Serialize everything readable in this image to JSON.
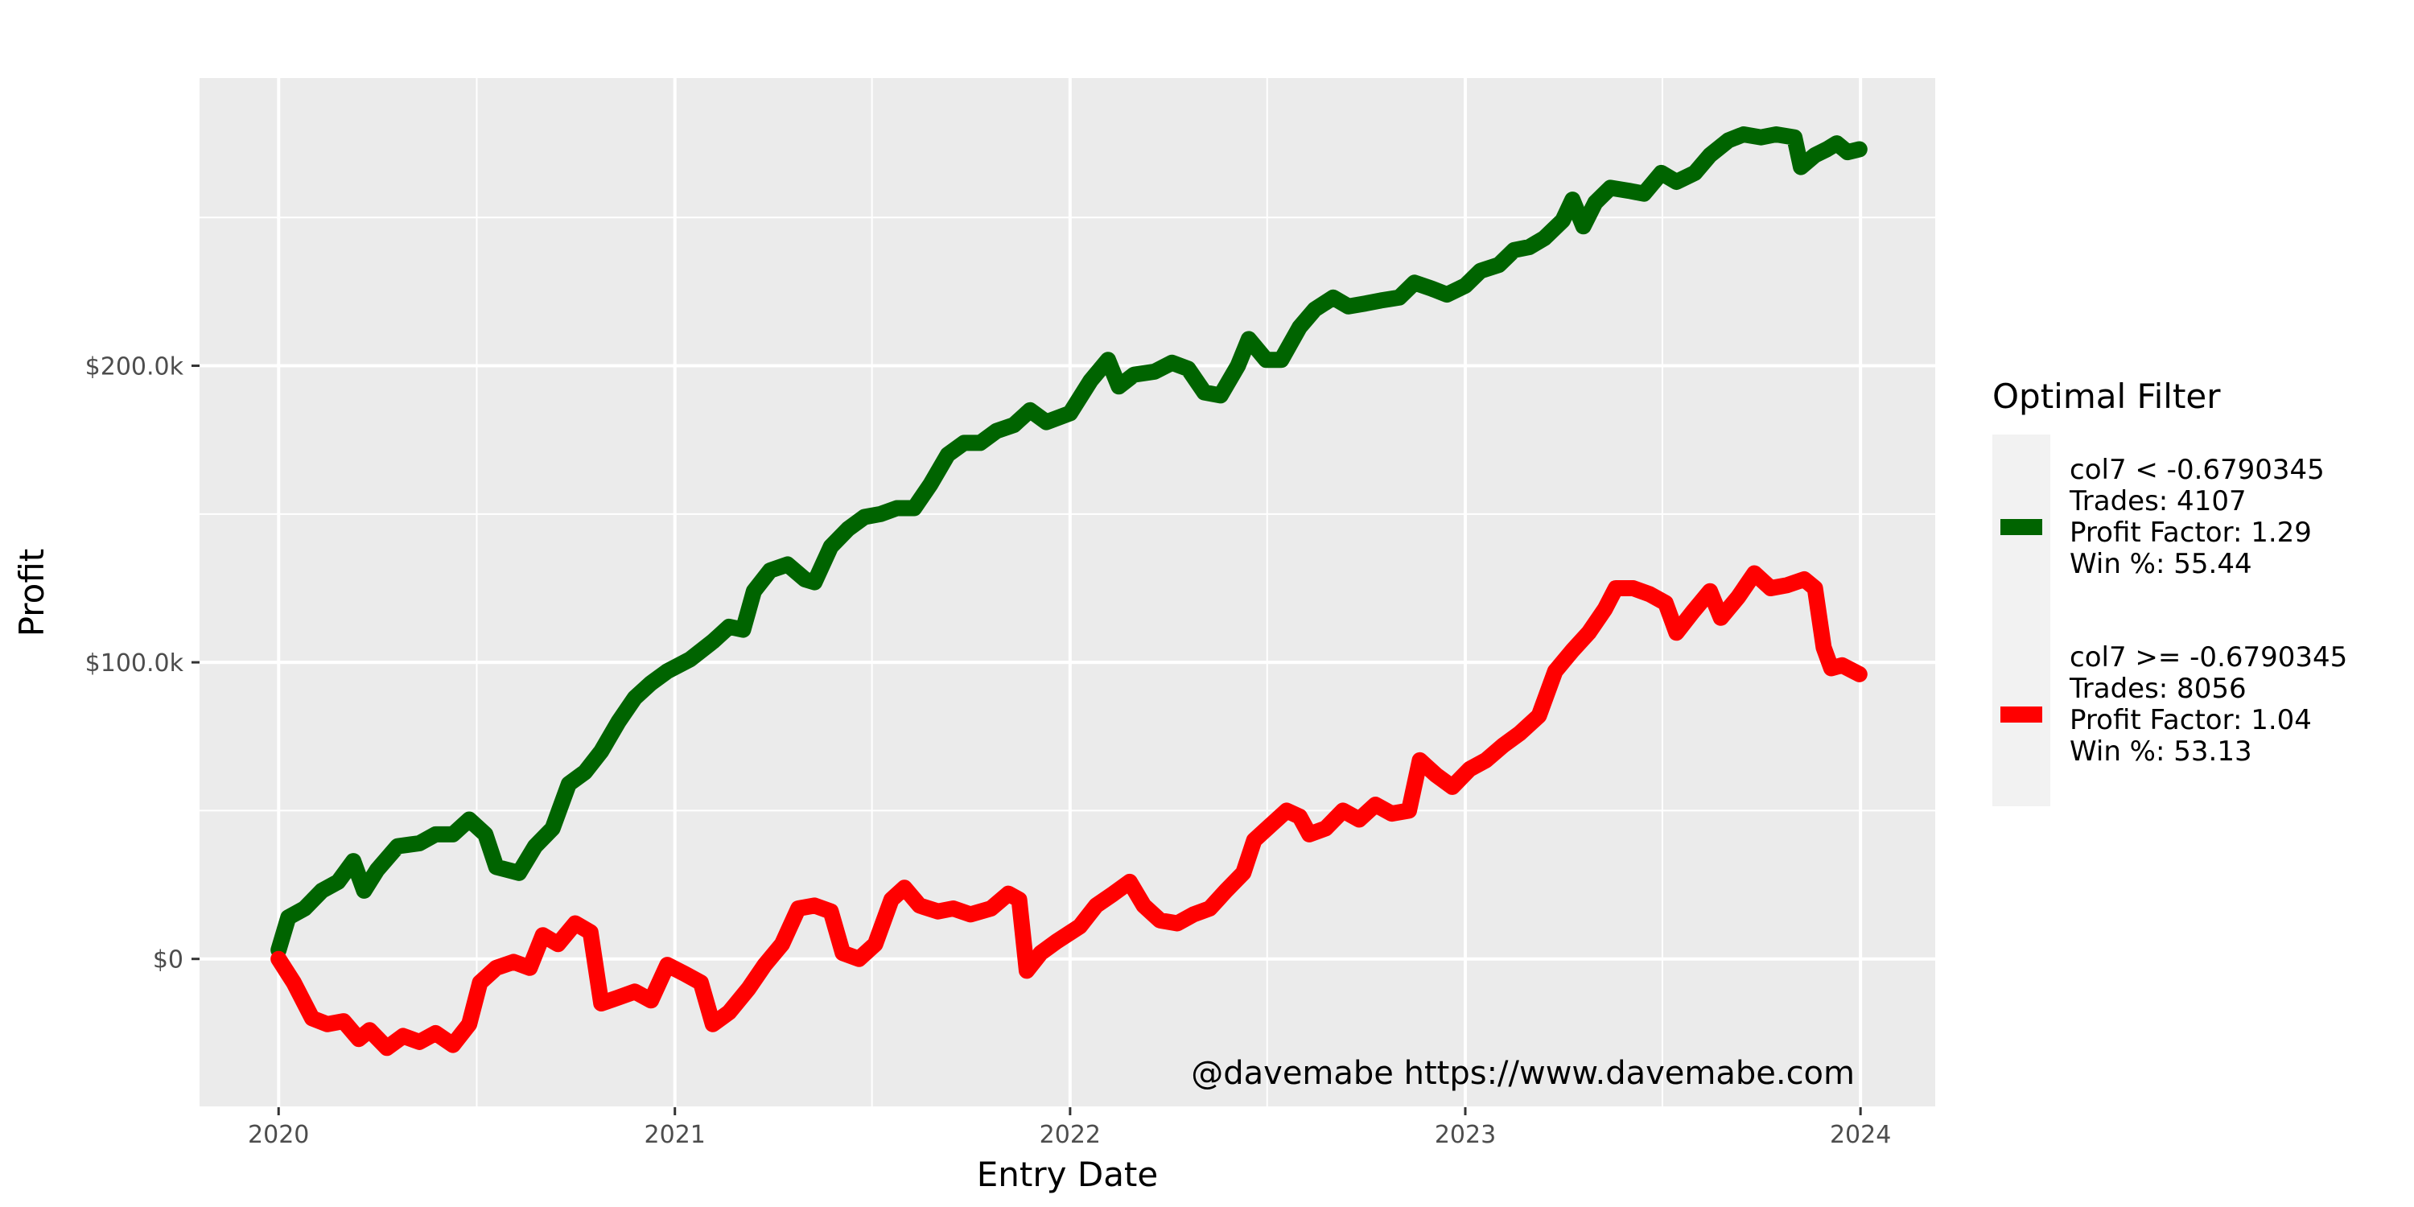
{
  "chart_data": {
    "type": "line",
    "title": "",
    "xlabel": "Entry Date",
    "ylabel": "Profit",
    "x_ticks": [
      "2020",
      "2021",
      "2022",
      "2023",
      "2024"
    ],
    "y_ticks": [
      {
        "value": 0,
        "label": "$0"
      },
      {
        "value": 100000,
        "label": "$100.0k"
      },
      {
        "value": 200000,
        "label": "$200.0k"
      }
    ],
    "xlim": [
      "2019-10-20",
      "2024-03-10"
    ],
    "ylim": [
      -50000,
      297000
    ],
    "grid": true,
    "legend": {
      "title": "Optimal Filter",
      "position": "right"
    },
    "annotation": "@davemabe https://www.davemabe.com",
    "series": [
      {
        "name": " col7 < -0.6790345",
        "legend_lines": [
          " col7 < -0.6790345",
          "Trades: 4107",
          "Profit Factor: 1.29",
          "Win %: 55.44"
        ],
        "color": "#006400",
        "points": [
          [
            "2020-01-01",
            3000
          ],
          [
            "2020-01-10",
            14000
          ],
          [
            "2020-01-25",
            17000
          ],
          [
            "2020-02-10",
            23000
          ],
          [
            "2020-02-25",
            26000
          ],
          [
            "2020-03-10",
            33000
          ],
          [
            "2020-03-20",
            23000
          ],
          [
            "2020-04-01",
            30000
          ],
          [
            "2020-04-20",
            38000
          ],
          [
            "2020-05-10",
            39000
          ],
          [
            "2020-05-25",
            42000
          ],
          [
            "2020-06-10",
            42000
          ],
          [
            "2020-06-25",
            47000
          ],
          [
            "2020-07-10",
            42000
          ],
          [
            "2020-07-20",
            31000
          ],
          [
            "2020-08-10",
            29000
          ],
          [
            "2020-08-25",
            38000
          ],
          [
            "2020-09-10",
            44000
          ],
          [
            "2020-09-25",
            59000
          ],
          [
            "2020-10-10",
            63000
          ],
          [
            "2020-10-25",
            70000
          ],
          [
            "2020-11-10",
            80000
          ],
          [
            "2020-11-25",
            88000
          ],
          [
            "2020-12-10",
            93000
          ],
          [
            "2020-12-25",
            97000
          ],
          [
            "2021-01-15",
            101000
          ],
          [
            "2021-02-05",
            107000
          ],
          [
            "2021-02-20",
            112000
          ],
          [
            "2021-03-05",
            111000
          ],
          [
            "2021-03-15",
            124000
          ],
          [
            "2021-03-30",
            131000
          ],
          [
            "2021-04-15",
            133000
          ],
          [
            "2021-05-01",
            128000
          ],
          [
            "2021-05-10",
            127000
          ],
          [
            "2021-05-25",
            139000
          ],
          [
            "2021-06-10",
            145000
          ],
          [
            "2021-06-25",
            149000
          ],
          [
            "2021-07-10",
            150000
          ],
          [
            "2021-07-25",
            152000
          ],
          [
            "2021-08-10",
            152000
          ],
          [
            "2021-08-25",
            160000
          ],
          [
            "2021-09-10",
            170000
          ],
          [
            "2021-09-25",
            174000
          ],
          [
            "2021-10-10",
            174000
          ],
          [
            "2021-10-25",
            178000
          ],
          [
            "2021-11-10",
            180000
          ],
          [
            "2021-11-25",
            185000
          ],
          [
            "2021-12-10",
            181000
          ],
          [
            "2022-01-01",
            184000
          ],
          [
            "2022-01-20",
            195000
          ],
          [
            "2022-02-05",
            202000
          ],
          [
            "2022-02-15",
            193000
          ],
          [
            "2022-03-01",
            197000
          ],
          [
            "2022-03-20",
            198000
          ],
          [
            "2022-04-05",
            201000
          ],
          [
            "2022-04-20",
            199000
          ],
          [
            "2022-05-05",
            191000
          ],
          [
            "2022-05-20",
            190000
          ],
          [
            "2022-06-05",
            200000
          ],
          [
            "2022-06-15",
            209000
          ],
          [
            "2022-07-01",
            202000
          ],
          [
            "2022-07-15",
            202000
          ],
          [
            "2022-08-01",
            213000
          ],
          [
            "2022-08-15",
            219000
          ],
          [
            "2022-09-01",
            223000
          ],
          [
            "2022-09-15",
            220000
          ],
          [
            "2022-10-01",
            221000
          ],
          [
            "2022-10-15",
            222000
          ],
          [
            "2022-11-01",
            223000
          ],
          [
            "2022-11-15",
            228000
          ],
          [
            "2022-12-01",
            226000
          ],
          [
            "2022-12-15",
            224000
          ],
          [
            "2023-01-01",
            227000
          ],
          [
            "2023-01-15",
            232000
          ],
          [
            "2023-02-01",
            234000
          ],
          [
            "2023-02-15",
            239000
          ],
          [
            "2023-03-01",
            240000
          ],
          [
            "2023-03-15",
            243000
          ],
          [
            "2023-04-01",
            249000
          ],
          [
            "2023-04-10",
            256000
          ],
          [
            "2023-04-20",
            247000
          ],
          [
            "2023-05-01",
            255000
          ],
          [
            "2023-05-15",
            260000
          ],
          [
            "2023-06-01",
            259000
          ],
          [
            "2023-06-15",
            258000
          ],
          [
            "2023-07-01",
            265000
          ],
          [
            "2023-07-15",
            262000
          ],
          [
            "2023-08-01",
            265000
          ],
          [
            "2023-08-15",
            271000
          ],
          [
            "2023-09-01",
            276000
          ],
          [
            "2023-09-15",
            278000
          ],
          [
            "2023-10-01",
            277000
          ],
          [
            "2023-10-15",
            278000
          ],
          [
            "2023-11-01",
            277000
          ],
          [
            "2023-11-07",
            267000
          ],
          [
            "2023-11-20",
            271000
          ],
          [
            "2023-12-01",
            273000
          ],
          [
            "2023-12-10",
            275000
          ],
          [
            "2023-12-20",
            272000
          ],
          [
            "2023-12-31",
            273000
          ]
        ]
      },
      {
        "name": " col7 >= -0.6790345",
        "legend_lines": [
          " col7 >= -0.6790345",
          "Trades: 8056",
          "Profit Factor: 1.04",
          "Win %: 53.13"
        ],
        "color": "#ff0000",
        "points": [
          [
            "2020-01-01",
            0
          ],
          [
            "2020-01-15",
            -8000
          ],
          [
            "2020-02-01",
            -20000
          ],
          [
            "2020-02-15",
            -22000
          ],
          [
            "2020-03-01",
            -21000
          ],
          [
            "2020-03-15",
            -27000
          ],
          [
            "2020-03-25",
            -24000
          ],
          [
            "2020-04-10",
            -30000
          ],
          [
            "2020-04-25",
            -26000
          ],
          [
            "2020-05-10",
            -28000
          ],
          [
            "2020-05-25",
            -25000
          ],
          [
            "2020-06-10",
            -29000
          ],
          [
            "2020-06-25",
            -22000
          ],
          [
            "2020-07-05",
            -8000
          ],
          [
            "2020-07-20",
            -3000
          ],
          [
            "2020-08-05",
            -1000
          ],
          [
            "2020-08-20",
            -3000
          ],
          [
            "2020-09-01",
            8000
          ],
          [
            "2020-09-15",
            5000
          ],
          [
            "2020-10-01",
            12000
          ],
          [
            "2020-10-15",
            9000
          ],
          [
            "2020-10-25",
            -15000
          ],
          [
            "2020-11-10",
            -13000
          ],
          [
            "2020-11-25",
            -11000
          ],
          [
            "2020-12-10",
            -14000
          ],
          [
            "2020-12-25",
            -2000
          ],
          [
            "2021-01-10",
            -5000
          ],
          [
            "2021-01-25",
            -8000
          ],
          [
            "2021-02-05",
            -22000
          ],
          [
            "2021-02-20",
            -18000
          ],
          [
            "2021-03-10",
            -10000
          ],
          [
            "2021-03-25",
            -2000
          ],
          [
            "2021-04-10",
            5000
          ],
          [
            "2021-04-25",
            17000
          ],
          [
            "2021-05-10",
            18000
          ],
          [
            "2021-05-25",
            16000
          ],
          [
            "2021-06-05",
            2000
          ],
          [
            "2021-06-20",
            0
          ],
          [
            "2021-07-05",
            5000
          ],
          [
            "2021-07-20",
            20000
          ],
          [
            "2021-08-01",
            24000
          ],
          [
            "2021-08-15",
            18000
          ],
          [
            "2021-09-01",
            16000
          ],
          [
            "2021-09-15",
            17000
          ],
          [
            "2021-10-01",
            15000
          ],
          [
            "2021-10-20",
            17000
          ],
          [
            "2021-11-05",
            22000
          ],
          [
            "2021-11-15",
            20000
          ],
          [
            "2021-11-22",
            -4000
          ],
          [
            "2021-12-05",
            2000
          ],
          [
            "2021-12-20",
            6000
          ],
          [
            "2022-01-10",
            11000
          ],
          [
            "2022-01-25",
            18000
          ],
          [
            "2022-02-10",
            22000
          ],
          [
            "2022-02-25",
            26000
          ],
          [
            "2022-03-10",
            18000
          ],
          [
            "2022-03-25",
            13000
          ],
          [
            "2022-04-10",
            12000
          ],
          [
            "2022-04-25",
            15000
          ],
          [
            "2022-05-10",
            17000
          ],
          [
            "2022-05-25",
            23000
          ],
          [
            "2022-06-10",
            29000
          ],
          [
            "2022-06-20",
            40000
          ],
          [
            "2022-07-05",
            45000
          ],
          [
            "2022-07-20",
            50000
          ],
          [
            "2022-08-01",
            48000
          ],
          [
            "2022-08-10",
            42000
          ],
          [
            "2022-08-25",
            44000
          ],
          [
            "2022-09-10",
            50000
          ],
          [
            "2022-09-25",
            47000
          ],
          [
            "2022-10-10",
            52000
          ],
          [
            "2022-10-25",
            49000
          ],
          [
            "2022-11-10",
            50000
          ],
          [
            "2022-11-20",
            67000
          ],
          [
            "2022-12-05",
            62000
          ],
          [
            "2022-12-20",
            58000
          ],
          [
            "2023-01-05",
            64000
          ],
          [
            "2023-01-20",
            67000
          ],
          [
            "2023-02-05",
            72000
          ],
          [
            "2023-02-20",
            76000
          ],
          [
            "2023-03-10",
            82000
          ],
          [
            "2023-03-25",
            97000
          ],
          [
            "2023-04-10",
            104000
          ],
          [
            "2023-04-25",
            110000
          ],
          [
            "2023-05-10",
            118000
          ],
          [
            "2023-05-20",
            125000
          ],
          [
            "2023-06-05",
            125000
          ],
          [
            "2023-06-20",
            123000
          ],
          [
            "2023-07-05",
            120000
          ],
          [
            "2023-07-15",
            110000
          ],
          [
            "2023-07-30",
            117000
          ],
          [
            "2023-08-15",
            124000
          ],
          [
            "2023-08-25",
            115000
          ],
          [
            "2023-09-10",
            122000
          ],
          [
            "2023-09-25",
            130000
          ],
          [
            "2023-10-10",
            125000
          ],
          [
            "2023-10-25",
            126000
          ],
          [
            "2023-11-10",
            128000
          ],
          [
            "2023-11-20",
            125000
          ],
          [
            "2023-11-28",
            105000
          ],
          [
            "2023-12-05",
            98000
          ],
          [
            "2023-12-15",
            99000
          ],
          [
            "2023-12-31",
            96000
          ]
        ]
      }
    ]
  }
}
